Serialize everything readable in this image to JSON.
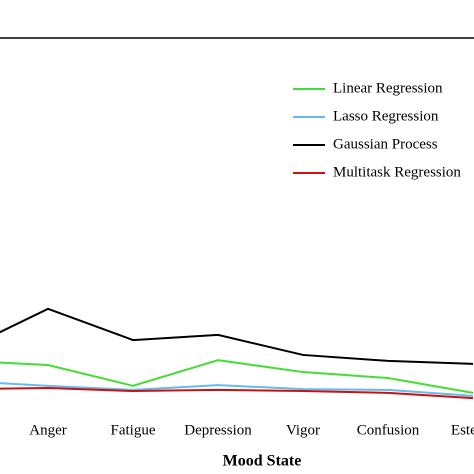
{
  "chart_data": {
    "type": "line",
    "xlabel": "Mood State",
    "categories": [
      null,
      "Anger",
      "Fatigue",
      "Depression",
      "Vigor",
      "Confusion",
      "Esteem"
    ],
    "ylim": [
      0,
      1
    ],
    "series": [
      {
        "name": "Linear Regression",
        "color": "#44dd33",
        "values": [
          0.132,
          0.121,
          0.065,
          0.134,
          0.102,
          0.086,
          0.046
        ]
      },
      {
        "name": "Lasso Regression",
        "color": "#66bbee",
        "values": [
          0.078,
          0.065,
          0.054,
          0.067,
          0.056,
          0.054,
          0.038
        ]
      },
      {
        "name": "Gaussian Process",
        "color": "#000000",
        "values": [
          0.161,
          0.272,
          0.188,
          0.202,
          0.148,
          0.132,
          0.124
        ]
      },
      {
        "name": "Multitask Regression",
        "color": "#cc1111",
        "values": [
          0.056,
          0.059,
          0.051,
          0.054,
          0.051,
          0.046,
          0.032
        ]
      }
    ]
  }
}
